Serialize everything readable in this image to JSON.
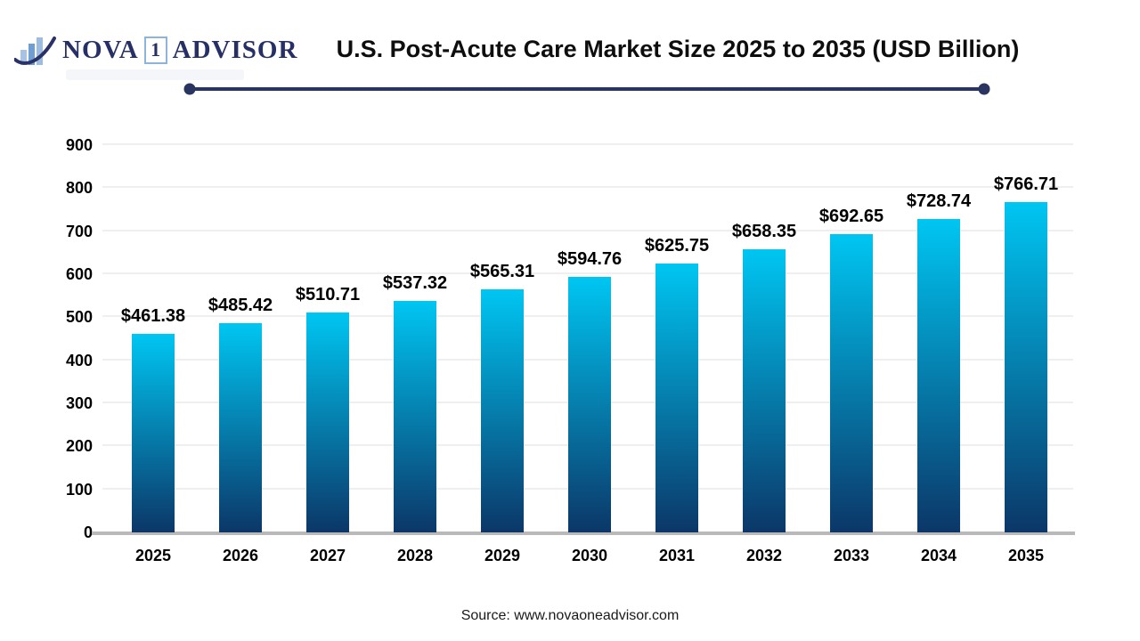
{
  "logo": {
    "brand_prefix": "NOVA",
    "brand_number": "1",
    "brand_suffix": "ADVISOR",
    "icon": "bar-chart-swoosh-icon",
    "navy": "#262f66",
    "light_blue": "#8fb4dc"
  },
  "header": {
    "title": "U.S. Post-Acute Care Market Size 2025 to 2035 (USD Billion)",
    "underline_color": "#2a3460"
  },
  "chart_data": {
    "type": "bar",
    "title": "U.S. Post-Acute Care Market Size 2025 to 2035 (USD Billion)",
    "categories": [
      "2025",
      "2026",
      "2027",
      "2028",
      "2029",
      "2030",
      "2031",
      "2032",
      "2033",
      "2034",
      "2035"
    ],
    "values": [
      461.38,
      485.42,
      510.71,
      537.32,
      565.31,
      594.76,
      625.75,
      658.35,
      692.65,
      728.74,
      766.71
    ],
    "value_labels": [
      "$461.38",
      "$485.42",
      "$510.71",
      "$537.32",
      "$565.31",
      "$594.76",
      "$625.75",
      "$658.35",
      "$692.65",
      "$728.74",
      "$766.71"
    ],
    "xlabel": "",
    "ylabel": "",
    "ylim": [
      0,
      900
    ],
    "yticks": [
      0,
      100,
      200,
      300,
      400,
      500,
      600,
      700,
      800,
      900
    ],
    "grid": true,
    "legend": "none",
    "bar_gradient_top": "#00c6f2",
    "bar_gradient_bottom": "#0b3768",
    "gridline_color": "#efefef",
    "axis_line_color": "#b9b9b9"
  },
  "footer": {
    "source": "Source: www.novaoneadvisor.com"
  }
}
